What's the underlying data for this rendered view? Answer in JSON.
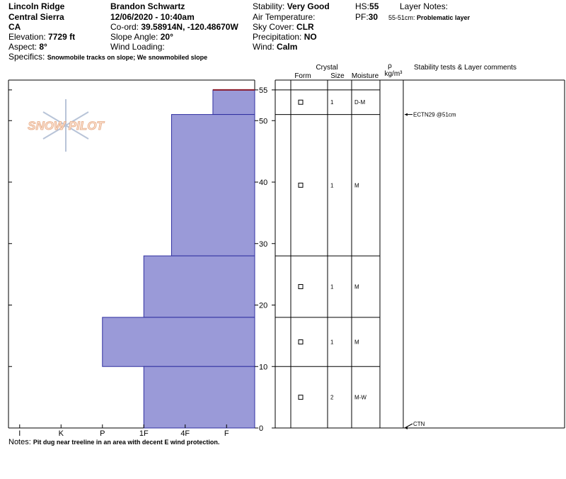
{
  "header": {
    "location": "Lincoln Ridge",
    "range": "Central Sierra",
    "state": "CA",
    "elevation": {
      "label": "Elevation:",
      "value": "7729 ft"
    },
    "aspect": {
      "label": "Aspect:",
      "value": "8°"
    },
    "specifics": {
      "label": "Specifics:",
      "value": "Snowmobile tracks on slope; We snowmobiled slope"
    },
    "observer": "Brandon Schwartz",
    "datetime": "12/06/2020 - 10:40am",
    "coords": {
      "label": "Co-ord:",
      "value": "39.58914N, -120.48670W"
    },
    "slope_angle": {
      "label": "Slope Angle:",
      "value": "20°"
    },
    "wind_loading": "Wind Loading:",
    "stability": {
      "label": "Stability:",
      "value": "Very Good"
    },
    "air_temperature": "Air Temperature:",
    "sky_cover": {
      "label": "Sky Cover:",
      "value": "CLR"
    },
    "precipitation": {
      "label": "Precipitation:",
      "value": "NO"
    },
    "wind": {
      "label": "Wind:",
      "value": "Calm"
    },
    "hs": {
      "label": "HS:",
      "value": "55"
    },
    "pf": {
      "label": "PF:",
      "value": "30"
    },
    "layer_notes": "Layer Notes:",
    "layer_note": {
      "label": "55-51cm:",
      "value": "Problematic layer"
    }
  },
  "logo": "SNOW PILOT",
  "chart_data": {
    "type": "snow-profile",
    "ylim": [
      0,
      56.6
    ],
    "yticks": [
      0,
      10,
      20,
      30,
      40,
      50,
      55
    ],
    "xlim": [
      0.73,
      6.68
    ],
    "xticks": [
      {
        "value": 1,
        "label": "I"
      },
      {
        "value": 2,
        "label": "K"
      },
      {
        "value": 3,
        "label": "P"
      },
      {
        "value": 4,
        "label": "1F"
      },
      {
        "value": 5,
        "label": "4F"
      },
      {
        "value": 6,
        "label": "F"
      }
    ],
    "color": "#9a9ad8",
    "surface_color": "#8b1a2a",
    "columns": {
      "crystal": "Crystal",
      "form": "Form",
      "size": "Size",
      "moisture": "Moisture",
      "density": "ρ",
      "density_unit": "kg/m³",
      "comments": "Stability tests & Layer comments"
    },
    "layers": [
      {
        "bottom": 51,
        "top": 55,
        "hardness": 5.67,
        "size": 1,
        "moisture": "D-M"
      },
      {
        "bottom": 28,
        "top": 51,
        "hardness": 4.67,
        "size": 1,
        "moisture": "M"
      },
      {
        "bottom": 18,
        "top": 28,
        "hardness": 4,
        "size": 1,
        "moisture": "M"
      },
      {
        "bottom": 10,
        "top": 18,
        "hardness": 3,
        "size": 1,
        "moisture": "M"
      },
      {
        "bottom": 0,
        "top": 10,
        "hardness": 4,
        "size": 2,
        "moisture": "M-W"
      }
    ],
    "tests": [
      {
        "label": "ECTN29 @51cm",
        "depth": 51
      },
      {
        "label": "CTN",
        "depth": 0
      }
    ]
  },
  "notes": {
    "label": "Notes:",
    "value": "Pit dug near treeline in an area with decent E wind protection."
  }
}
